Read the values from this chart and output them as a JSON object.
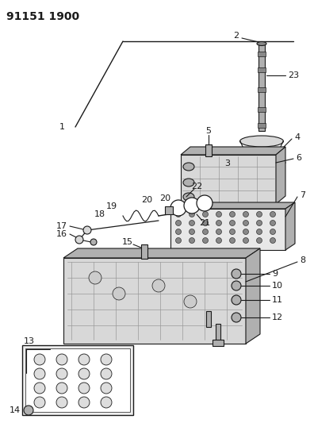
{
  "title": "91151 1900",
  "bg_color": "#ffffff",
  "line_color": "#1a1a1a",
  "gray_light": "#d8d8d8",
  "gray_mid": "#b0b0b0",
  "gray_dark": "#888888",
  "title_fontsize": 10,
  "label_fontsize": 7.5,
  "fig_width": 3.96,
  "fig_height": 5.33,
  "dpi": 100
}
